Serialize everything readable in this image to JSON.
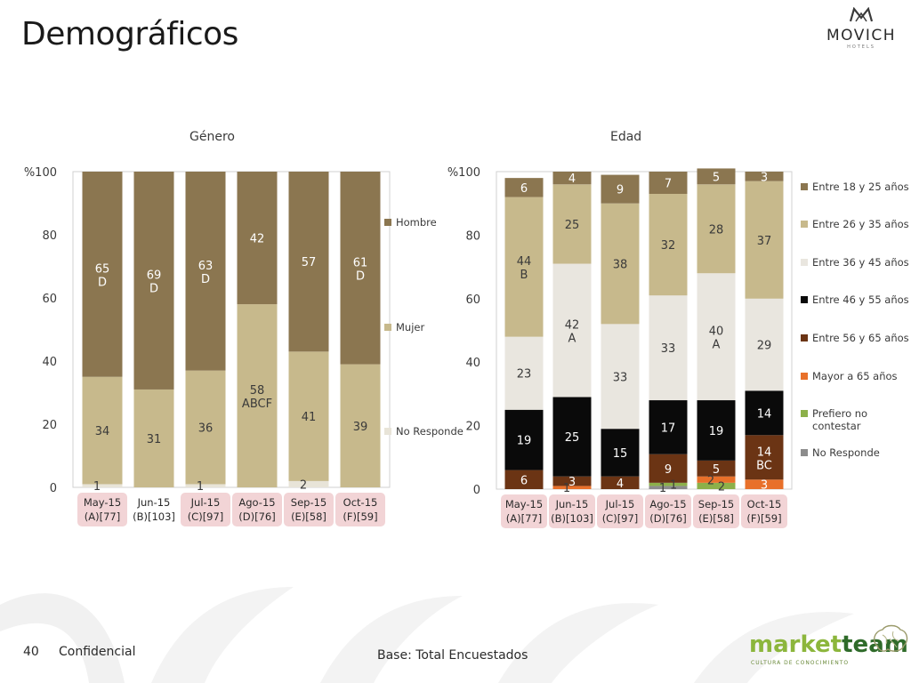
{
  "slide": {
    "title": "Demográficos",
    "page_number": "40",
    "confidential": "Confidencial",
    "base": "Base: Total Encuestados",
    "movich_logo": {
      "brand": "MOVICH",
      "sub": "HOTELS"
    },
    "marketteam_logo": {
      "market": "market",
      "team": "team",
      "sub": "CULTURA DE CONOCIMIENTO"
    }
  },
  "chart_data": [
    {
      "type": "bar",
      "stacked": true,
      "title": "Género",
      "y_unit": "%",
      "ylim": [
        0,
        100
      ],
      "yticks": [
        "0",
        "20",
        "40",
        "60",
        "80",
        "%100"
      ],
      "categories": [
        [
          "May-15",
          "(A)[77]"
        ],
        [
          "Jun-15",
          "(B)[103]"
        ],
        [
          "Jul-15",
          "(C)[97]"
        ],
        [
          "Ago-15",
          "(D)[76]"
        ],
        [
          "Sep-15",
          "(E)[58]"
        ],
        [
          "Oct-15",
          "(F)[59]"
        ]
      ],
      "highlighted_categories": [
        0,
        2,
        3,
        4,
        5
      ],
      "legend_position": "right",
      "series": [
        {
          "name": "No Responde",
          "color": "#e8e4d8",
          "values": [
            1,
            0,
            1,
            0,
            2,
            0
          ],
          "labels": [
            "1",
            "",
            "1",
            "",
            "2",
            ""
          ]
        },
        {
          "name": "Mujer",
          "color": "#c7b98c",
          "values": [
            34,
            31,
            36,
            58,
            41,
            39
          ],
          "labels": [
            "34",
            "31",
            "36",
            "58\nABCF",
            "41",
            "39"
          ]
        },
        {
          "name": "Hombre",
          "color": "#8b7650",
          "values": [
            65,
            69,
            63,
            42,
            57,
            61
          ],
          "labels": [
            "65\nD",
            "69\nD",
            "63\nD",
            "42",
            "57",
            "61\nD"
          ]
        }
      ]
    },
    {
      "type": "bar",
      "stacked": true,
      "title": "Edad",
      "y_unit": "%",
      "ylim": [
        0,
        100
      ],
      "yticks": [
        "0",
        "20",
        "40",
        "60",
        "80",
        "%100"
      ],
      "categories": [
        [
          "May-15",
          "(A)[77]"
        ],
        [
          "Jun-15",
          "(B)[103]"
        ],
        [
          "Jul-15",
          "(C)[97]"
        ],
        [
          "Ago-15",
          "(D)[76]"
        ],
        [
          "Sep-15",
          "(E)[58]"
        ],
        [
          "Oct-15",
          "(F)[59]"
        ]
      ],
      "highlighted_categories": [
        0,
        1,
        2,
        3,
        4,
        5
      ],
      "legend_position": "right",
      "series": [
        {
          "name": "No Responde",
          "color": "#8c8c8c",
          "values": [
            0,
            0,
            0,
            1,
            0,
            0
          ],
          "labels": [
            "",
            "",
            "",
            "1",
            "",
            ""
          ]
        },
        {
          "name": "Prefiero no contestar",
          "color": "#8cb04a",
          "values": [
            0,
            0,
            0,
            1,
            2,
            0
          ],
          "labels": [
            "",
            "",
            "",
            "1",
            "2",
            ""
          ]
        },
        {
          "name": "Mayor a 65 años",
          "color": "#e8702a",
          "values": [
            0,
            1,
            0,
            0,
            2,
            3
          ],
          "labels": [
            "",
            "1",
            "",
            "",
            "2",
            "3"
          ]
        },
        {
          "name": "Entre 56 y 65 años",
          "color": "#6b3414",
          "values": [
            6,
            3,
            4,
            9,
            5,
            14
          ],
          "labels": [
            "6",
            "3",
            "4",
            "9",
            "5",
            "14\nBC"
          ]
        },
        {
          "name": "Entre 46 y 55 años",
          "color": "#0a0a0a",
          "values": [
            19,
            25,
            15,
            17,
            19,
            14
          ],
          "labels": [
            "19",
            "25",
            "15",
            "17",
            "19",
            "14"
          ]
        },
        {
          "name": "Entre 36 y 45 años",
          "color": "#e9e6df",
          "values": [
            23,
            42,
            33,
            33,
            40,
            29
          ],
          "labels": [
            "23",
            "42\nA",
            "33",
            "33",
            "40\nA",
            "29"
          ]
        },
        {
          "name": "Entre 26 y 35 años",
          "color": "#c7b98c",
          "values": [
            44,
            25,
            38,
            32,
            28,
            37
          ],
          "labels": [
            "44\nB",
            "25",
            "38",
            "32",
            "28",
            "37"
          ]
        },
        {
          "name": "Entre 18 y 25 años",
          "color": "#8b7650",
          "values": [
            6,
            4,
            9,
            7,
            5,
            3
          ],
          "labels": [
            "6",
            "4",
            "9",
            "7",
            "5",
            "3"
          ]
        }
      ]
    }
  ]
}
